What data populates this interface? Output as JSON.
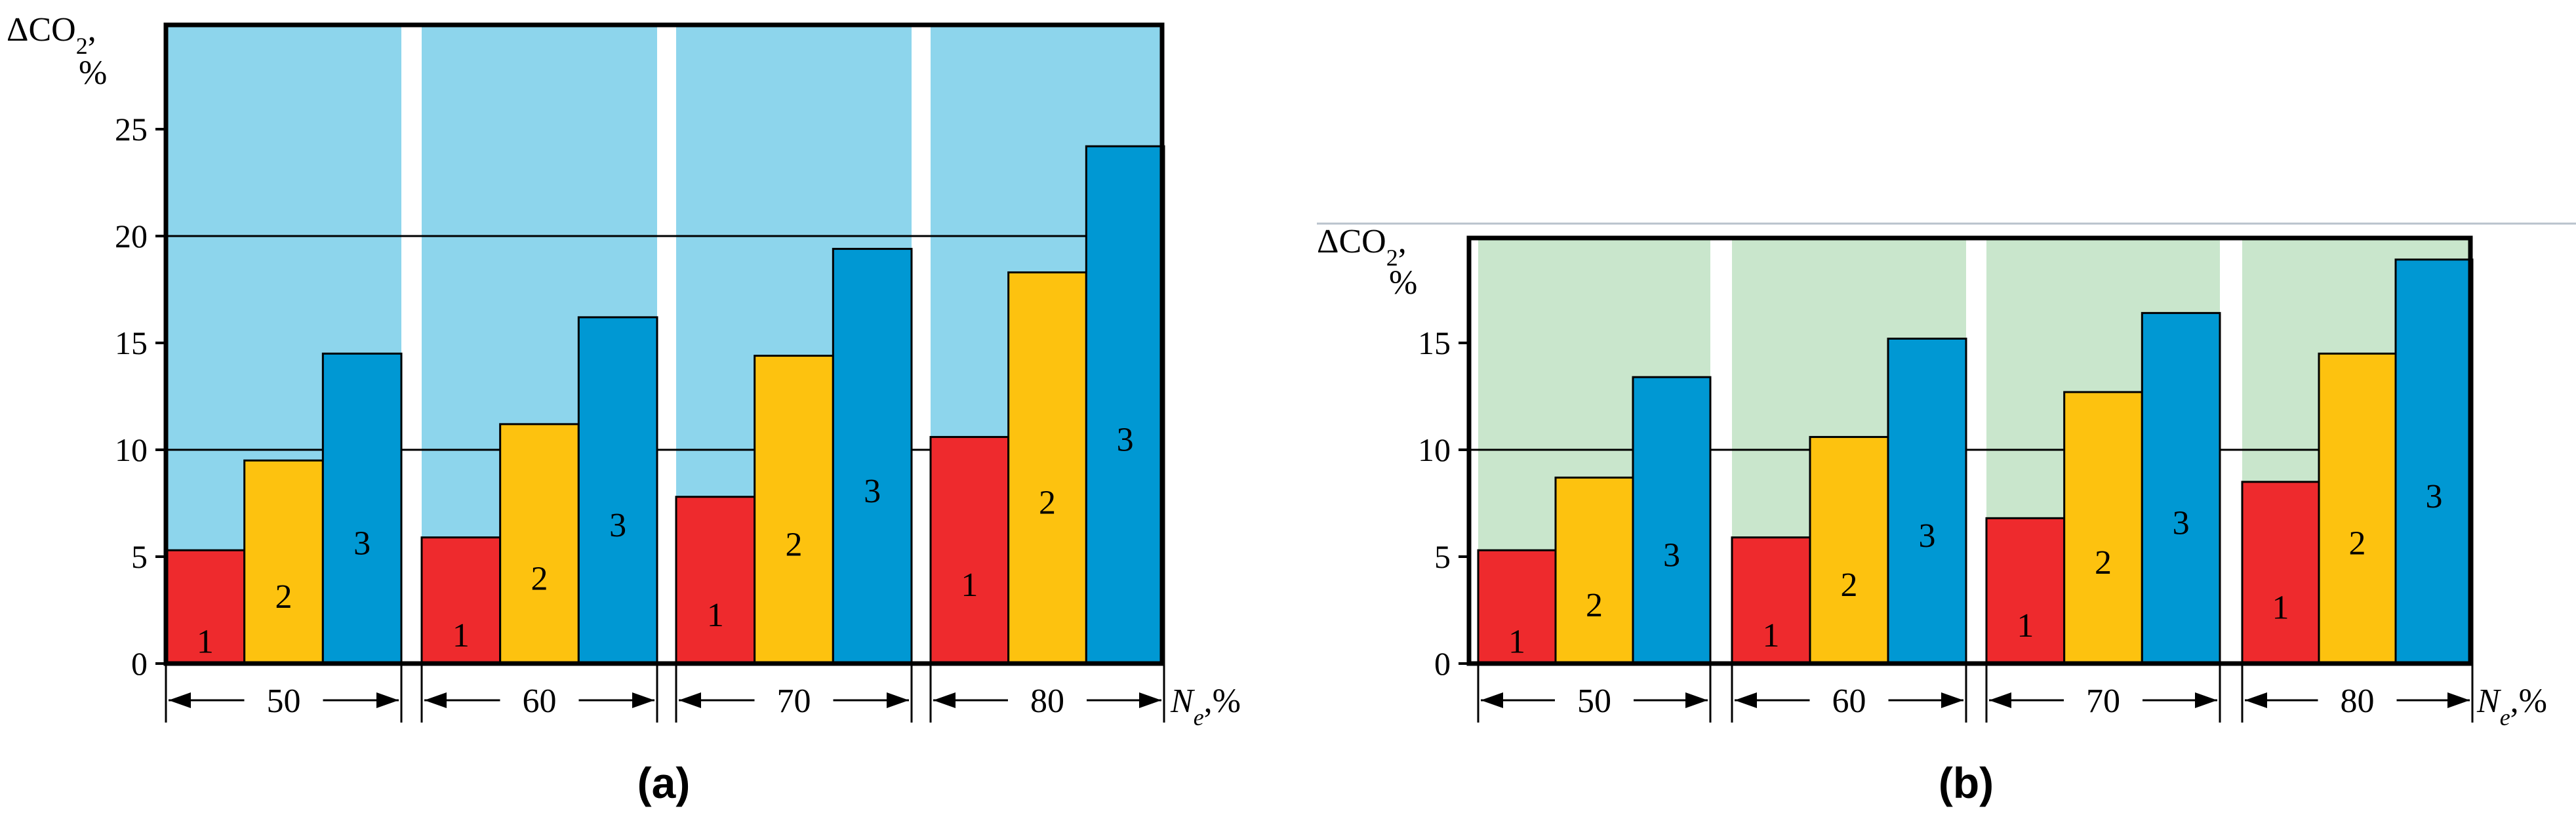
{
  "chart_data": [
    {
      "type": "bar",
      "panel_label": "(a)",
      "ylabel_main": "ΔCO",
      "ylabel_sub": "2",
      "ylabel_tail": ",",
      "ylabel_unit": "%",
      "xlabel_main": "N",
      "xlabel_sub": "e",
      "xlabel_tail": ",%",
      "ylim": [
        0,
        30
      ],
      "yticks": [
        0,
        5,
        10,
        15,
        20,
        25
      ],
      "gridlines": [
        10,
        20
      ],
      "band_color": "#8dd5ec",
      "categories": [
        "50",
        "60",
        "70",
        "80"
      ],
      "series": [
        {
          "name": "1",
          "color": "#ee2a2d",
          "values": [
            5.3,
            5.9,
            7.8,
            10.6
          ]
        },
        {
          "name": "2",
          "color": "#fdc20f",
          "values": [
            9.5,
            11.2,
            14.4,
            18.3
          ]
        },
        {
          "name": "3",
          "color": "#0098d3",
          "values": [
            14.5,
            16.2,
            19.4,
            24.2
          ]
        }
      ]
    },
    {
      "type": "bar",
      "panel_label": "(b)",
      "ylabel_main": "ΔCO",
      "ylabel_sub": "2",
      "ylabel_tail": ",",
      "ylabel_unit": "%",
      "xlabel_main": "N",
      "xlabel_sub": "e",
      "xlabel_tail": ",%",
      "ylim": [
        0,
        20
      ],
      "yticks": [
        0,
        5,
        10,
        15
      ],
      "gridlines": [
        10
      ],
      "band_color": "#c9e6cc",
      "categories": [
        "50",
        "60",
        "70",
        "80"
      ],
      "series": [
        {
          "name": "1",
          "color": "#ee2a2d",
          "values": [
            5.3,
            5.9,
            6.8,
            8.5
          ]
        },
        {
          "name": "2",
          "color": "#fdc20f",
          "values": [
            8.7,
            10.6,
            12.7,
            14.5
          ]
        },
        {
          "name": "3",
          "color": "#0098d3",
          "values": [
            13.4,
            15.2,
            16.4,
            18.9
          ]
        }
      ]
    }
  ]
}
